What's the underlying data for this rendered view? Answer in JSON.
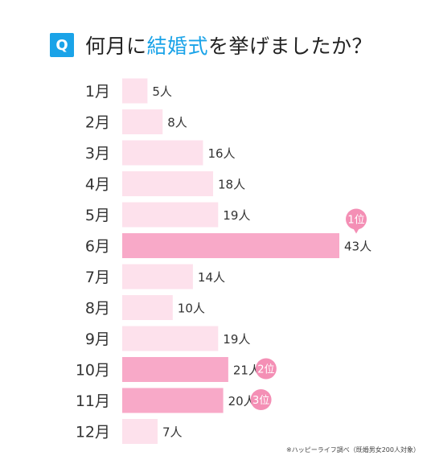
{
  "header": {
    "badge": "Q",
    "title_pre": "何月に",
    "title_highlight": "結婚式",
    "title_post": "を挙げましたか？"
  },
  "chart_data": {
    "type": "bar",
    "orientation": "horizontal",
    "categories": [
      "1月",
      "2月",
      "3月",
      "4月",
      "5月",
      "6月",
      "7月",
      "8月",
      "9月",
      "10月",
      "11月",
      "12月"
    ],
    "values": [
      5,
      8,
      16,
      18,
      19,
      43,
      14,
      10,
      19,
      21,
      20,
      7
    ],
    "value_suffix": "人",
    "rank_labels": [
      {
        "category": "6月",
        "label": "1位"
      },
      {
        "category": "10月",
        "label": "2位"
      },
      {
        "category": "11月",
        "label": "3位"
      }
    ],
    "colors": {
      "bar_default": "#fde1ec",
      "bar_highlight": "#f8a9c8",
      "badge": "#f48fb5",
      "label_text": "#333333"
    }
  },
  "footnote": "※ハッピーライフ調べ（既婚男女200人対象）"
}
